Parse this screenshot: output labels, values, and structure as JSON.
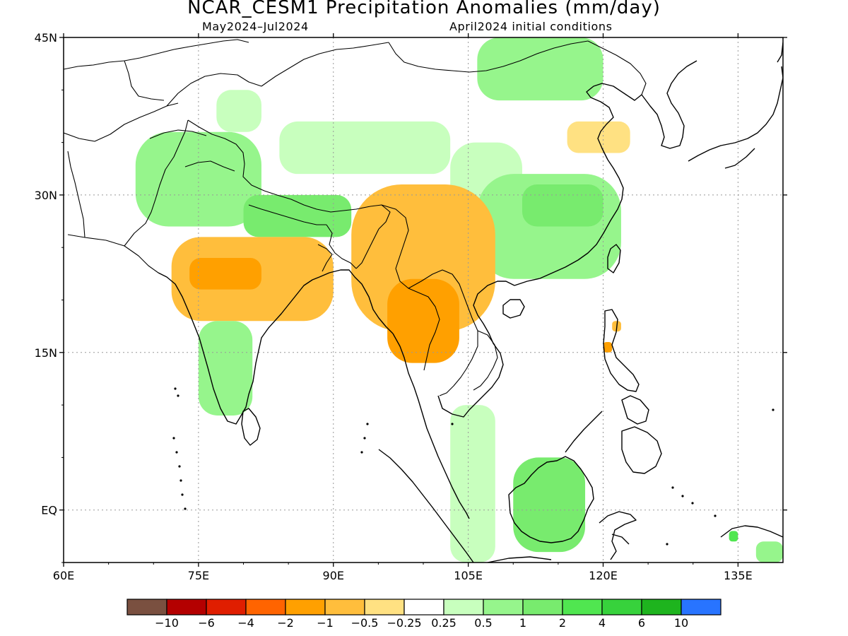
{
  "title": "NCAR_CESM1 Precipitation Anomalies (mm/day)",
  "subtitle_left": "May2024–Jul2024",
  "subtitle_right": "April2024 initial conditions",
  "axes": {
    "lat_ticks": [
      {
        "value": 45,
        "label": "45N"
      },
      {
        "value": 30,
        "label": "30N"
      },
      {
        "value": 15,
        "label": "15N"
      },
      {
        "value": 0,
        "label": "EQ"
      }
    ],
    "lon_ticks": [
      {
        "value": 60,
        "label": "60E"
      },
      {
        "value": 75,
        "label": "75E"
      },
      {
        "value": 90,
        "label": "90E"
      },
      {
        "value": 105,
        "label": "105E"
      },
      {
        "value": 120,
        "label": "120E"
      },
      {
        "value": 135,
        "label": "135E"
      }
    ],
    "lon_range": [
      60,
      140
    ],
    "lat_range": [
      -5,
      45
    ],
    "grid": "dotted"
  },
  "colorbar": {
    "colors": [
      "#7a5040",
      "#b40000",
      "#e01e00",
      "#ff6400",
      "#ffa000",
      "#ffbe3c",
      "#ffe182",
      "#ffffff",
      "#c8ffbe",
      "#96f58c",
      "#78eb6e",
      "#50e650",
      "#37d23c",
      "#1eb41e",
      "#2874ff"
    ],
    "labels": [
      "−10",
      "−6",
      "−4",
      "−2",
      "−1",
      "−0.5",
      "−0.25",
      "0.25",
      "0.5",
      "1",
      "2",
      "4",
      "6",
      "10"
    ]
  },
  "chart_data": {
    "type": "heatmap",
    "title": "NCAR_CESM1 Precipitation Anomalies (mm/day)",
    "units": "mm/day",
    "period": "May2024–Jul2024",
    "initial_conditions": "April2024 initial conditions",
    "lon_range": [
      60,
      140
    ],
    "lat_range": [
      -5,
      45
    ],
    "regions": [
      {
        "lon": [
          77,
          82
        ],
        "lat": [
          36,
          40
        ],
        "value": 0.5
      },
      {
        "lon": [
          68,
          82
        ],
        "lat": [
          27,
          36
        ],
        "value": 0.6
      },
      {
        "lon": [
          80,
          92
        ],
        "lat": [
          26,
          30
        ],
        "value": 1.8
      },
      {
        "lon": [
          84,
          103
        ],
        "lat": [
          32,
          37
        ],
        "value": 0.5
      },
      {
        "lon": [
          106,
          120
        ],
        "lat": [
          39,
          45
        ],
        "value": 0.6
      },
      {
        "lon": [
          103,
          111
        ],
        "lat": [
          28,
          35
        ],
        "value": 0.5
      },
      {
        "lon": [
          106,
          122
        ],
        "lat": [
          22,
          32
        ],
        "value": 0.8
      },
      {
        "lon": [
          111,
          120
        ],
        "lat": [
          27,
          31
        ],
        "value": 1.2
      },
      {
        "lon": [
          116,
          123
        ],
        "lat": [
          34,
          37
        ],
        "value": -0.4
      },
      {
        "lon": [
          72,
          90
        ],
        "lat": [
          18,
          26
        ],
        "value": -0.6
      },
      {
        "lon": [
          74,
          82
        ],
        "lat": [
          21,
          24
        ],
        "value": -1.0
      },
      {
        "lon": [
          92,
          108
        ],
        "lat": [
          17,
          31
        ],
        "value": -0.6
      },
      {
        "lon": [
          96,
          104
        ],
        "lat": [
          14,
          22
        ],
        "value": -1.0
      },
      {
        "lon": [
          75,
          81
        ],
        "lat": [
          9,
          18
        ],
        "value": 0.6
      },
      {
        "lon": [
          103,
          108
        ],
        "lat": [
          -5,
          10
        ],
        "value": 0.5
      },
      {
        "lon": [
          110,
          118
        ],
        "lat": [
          -4,
          5
        ],
        "value": 1.3
      },
      {
        "lon": [
          113,
          117
        ],
        "lat": [
          -3,
          1
        ],
        "value": 2.0
      },
      {
        "lon": [
          120,
          121
        ],
        "lat": [
          15,
          16
        ],
        "value": -1.5
      },
      {
        "lon": [
          121,
          122
        ],
        "lat": [
          17,
          18
        ],
        "value": -0.8
      },
      {
        "lon": [
          134,
          135
        ],
        "lat": [
          -3,
          -2
        ],
        "value": 2.5
      },
      {
        "lon": [
          137,
          140
        ],
        "lat": [
          -5,
          -3
        ],
        "value": 0.8
      }
    ]
  }
}
